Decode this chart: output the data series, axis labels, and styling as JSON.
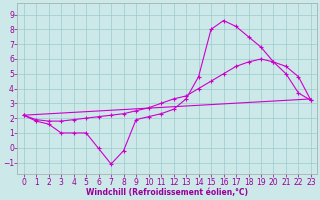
{
  "xlabel": "Windchill (Refroidissement éolien,°C)",
  "xlim": [
    -0.5,
    23.5
  ],
  "ylim": [
    -1.8,
    9.8
  ],
  "yticks": [
    -1,
    0,
    1,
    2,
    3,
    4,
    5,
    6,
    7,
    8,
    9
  ],
  "xticks": [
    0,
    1,
    2,
    3,
    4,
    5,
    6,
    7,
    8,
    9,
    10,
    11,
    12,
    13,
    14,
    15,
    16,
    17,
    18,
    19,
    20,
    21,
    22,
    23
  ],
  "line_color": "#cc00cc",
  "bg_color": "#cce8e8",
  "grid_color": "#99cccc",
  "line1_x": [
    0,
    1,
    2,
    3,
    4,
    5,
    6,
    7,
    8,
    9,
    10,
    11,
    12,
    13,
    14,
    15,
    16,
    17,
    18,
    19,
    20,
    21,
    22,
    23
  ],
  "line1_y": [
    2.2,
    1.8,
    1.6,
    1.0,
    1.0,
    1.0,
    -0.05,
    -1.1,
    -0.2,
    1.9,
    2.1,
    2.3,
    2.6,
    3.3,
    4.8,
    8.0,
    8.6,
    8.2,
    7.5,
    6.8,
    5.8,
    5.0,
    3.7,
    3.2
  ],
  "line2_x": [
    0,
    1,
    2,
    3,
    4,
    5,
    6,
    7,
    8,
    9,
    10,
    11,
    12,
    13,
    14,
    15,
    16,
    17,
    18,
    19,
    20,
    21,
    22,
    23
  ],
  "line2_y": [
    2.2,
    1.9,
    1.8,
    1.8,
    1.9,
    2.0,
    2.1,
    2.2,
    2.3,
    2.5,
    2.7,
    3.0,
    3.3,
    3.5,
    4.0,
    4.5,
    5.0,
    5.5,
    5.8,
    6.0,
    5.8,
    5.5,
    4.8,
    3.2
  ],
  "line3_x": [
    0,
    23
  ],
  "line3_y": [
    2.2,
    3.3
  ]
}
